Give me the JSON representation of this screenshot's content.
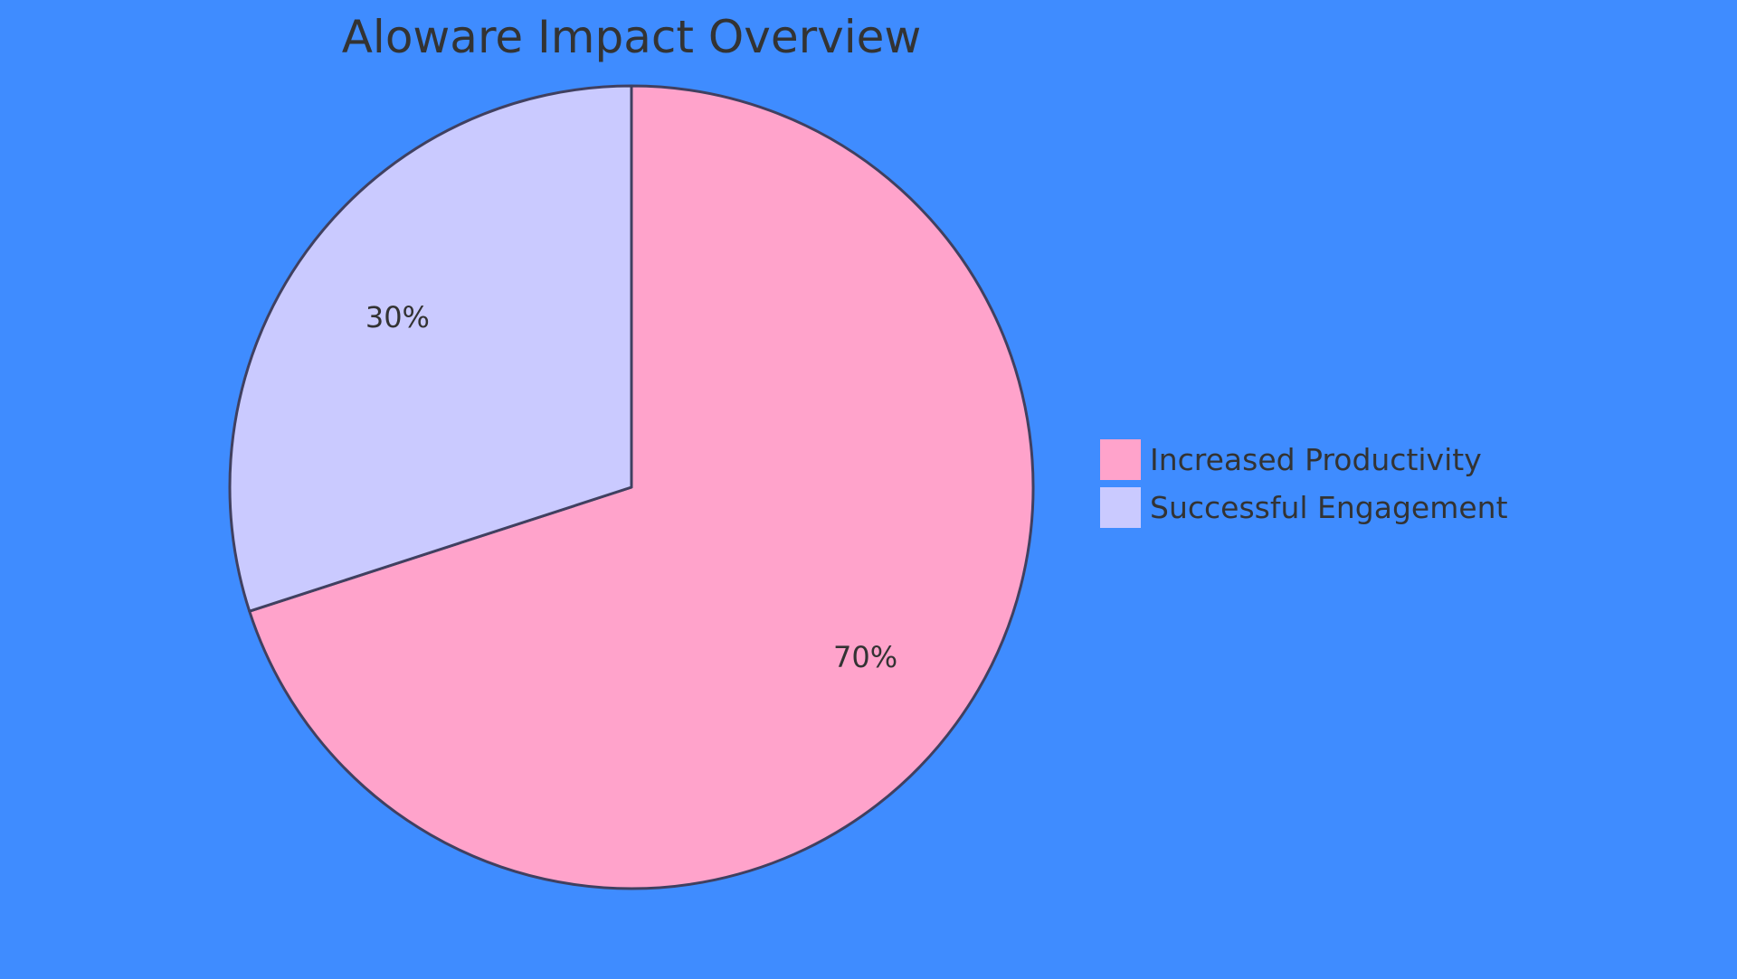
{
  "chart_data": {
    "type": "pie",
    "title": "Aloware Impact Overview",
    "slices": [
      {
        "name": "Increased Productivity",
        "value": 70,
        "label": "70%",
        "color": "#ffa3cb"
      },
      {
        "name": "Successful Engagement",
        "value": 30,
        "label": "30%",
        "color": "#cacaff"
      }
    ],
    "legend": "right",
    "start": "top",
    "direction": "clockwise"
  },
  "style": {
    "background": "#3f8cff",
    "outline": "#404060",
    "text": "#333333"
  }
}
